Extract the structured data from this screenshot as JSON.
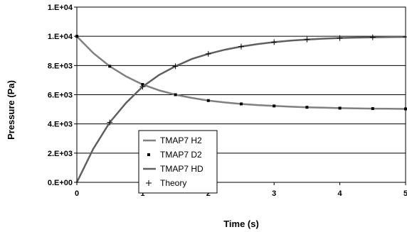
{
  "chart_data": {
    "type": "line",
    "title": "",
    "xlabel": "Time (s)",
    "ylabel": "Pressure (Pa)",
    "xlim": [
      0,
      5
    ],
    "ylim": [
      0,
      12000
    ],
    "x_ticks": [
      0,
      1,
      2,
      3,
      4,
      5
    ],
    "x_tick_labels": [
      "0",
      "1",
      "2",
      "3",
      "4",
      "5"
    ],
    "y_ticks": [
      0,
      2000,
      4000,
      6000,
      8000,
      10000,
      12000
    ],
    "y_tick_labels": [
      "0.E+00",
      "2.E+03",
      "4.E+03",
      "6.E+03",
      "8.E+03",
      "1.E+04",
      "1.E+04"
    ],
    "grid": "horizontal",
    "legend_position": "lower-left inside",
    "series": [
      {
        "name": "TMAP7 H2",
        "style": "line",
        "color": "#808080",
        "x": [
          0,
          0.25,
          0.5,
          0.75,
          1,
          1.25,
          1.5,
          1.75,
          2,
          2.25,
          2.5,
          2.75,
          3,
          3.25,
          3.5,
          3.75,
          4,
          4.25,
          4.5,
          4.75,
          5
        ],
        "y": [
          10000,
          8850,
          7950,
          7250,
          6700,
          6300,
          6000,
          5780,
          5600,
          5470,
          5370,
          5290,
          5230,
          5180,
          5140,
          5110,
          5080,
          5060,
          5050,
          5040,
          5030
        ]
      },
      {
        "name": "TMAP7 D2",
        "style": "markers",
        "marker": "square",
        "color": "#000000",
        "x": [
          0,
          0.5,
          1,
          1.5,
          2,
          2.5,
          3,
          3.5,
          4,
          4.5,
          5
        ],
        "y": [
          10000,
          7950,
          6700,
          6000,
          5600,
          5370,
          5230,
          5140,
          5080,
          5050,
          5030
        ]
      },
      {
        "name": "TMAP7 HD",
        "style": "line",
        "color": "#606060",
        "x": [
          0,
          0.25,
          0.5,
          0.75,
          1,
          1.25,
          1.5,
          1.75,
          2,
          2.25,
          2.5,
          2.75,
          3,
          3.25,
          3.5,
          3.75,
          4,
          4.25,
          4.5,
          4.75,
          5
        ],
        "y": [
          0,
          2300,
          4100,
          5450,
          6550,
          7350,
          7950,
          8450,
          8800,
          9080,
          9300,
          9470,
          9600,
          9700,
          9780,
          9840,
          9880,
          9910,
          9930,
          9950,
          9960
        ]
      },
      {
        "name": "Theory",
        "style": "markers",
        "marker": "plus",
        "color": "#000000",
        "x": [
          0,
          0.5,
          1,
          1.5,
          2,
          2.5,
          3,
          3.5,
          4,
          4.5,
          5
        ],
        "y": [
          0,
          4100,
          6550,
          7950,
          8800,
          9300,
          9600,
          9780,
          9880,
          9930,
          9960
        ]
      }
    ]
  }
}
